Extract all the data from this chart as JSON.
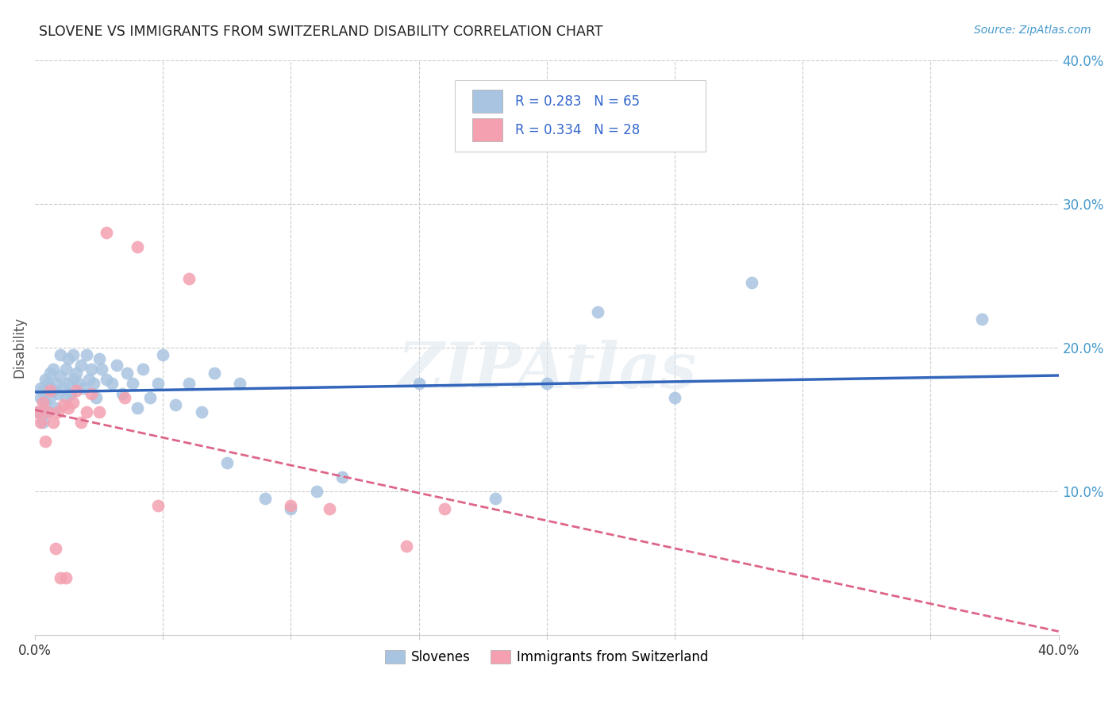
{
  "title": "SLOVENE VS IMMIGRANTS FROM SWITZERLAND DISABILITY CORRELATION CHART",
  "source": "Source: ZipAtlas.com",
  "ylabel": "Disability",
  "xlim": [
    0.0,
    0.4
  ],
  "ylim": [
    0.0,
    0.4
  ],
  "background_color": "#ffffff",
  "grid_color": "#cccccc",
  "watermark": "ZIPAtlas",
  "slovene_color": "#a8c4e0",
  "swiss_color": "#f4a0b0",
  "slovene_line_color": "#3366bb",
  "swiss_line_color": "#dd6688",
  "R_slovene": 0.283,
  "N_slovene": 65,
  "R_swiss": 0.334,
  "N_swiss": 28,
  "slovene_x": [
    0.001,
    0.002,
    0.002,
    0.003,
    0.003,
    0.004,
    0.004,
    0.005,
    0.005,
    0.006,
    0.006,
    0.007,
    0.007,
    0.008,
    0.008,
    0.009,
    0.01,
    0.01,
    0.011,
    0.012,
    0.012,
    0.013,
    0.013,
    0.014,
    0.015,
    0.015,
    0.016,
    0.017,
    0.018,
    0.019,
    0.02,
    0.021,
    0.022,
    0.023,
    0.024,
    0.025,
    0.026,
    0.028,
    0.03,
    0.032,
    0.034,
    0.036,
    0.038,
    0.04,
    0.042,
    0.045,
    0.048,
    0.05,
    0.055,
    0.06,
    0.065,
    0.07,
    0.075,
    0.08,
    0.09,
    0.1,
    0.11,
    0.12,
    0.15,
    0.18,
    0.2,
    0.22,
    0.25,
    0.28,
    0.37
  ],
  "slovene_y": [
    0.155,
    0.165,
    0.172,
    0.148,
    0.17,
    0.162,
    0.178,
    0.155,
    0.175,
    0.165,
    0.182,
    0.17,
    0.185,
    0.158,
    0.175,
    0.168,
    0.18,
    0.195,
    0.172,
    0.165,
    0.185,
    0.175,
    0.192,
    0.168,
    0.178,
    0.195,
    0.182,
    0.175,
    0.188,
    0.172,
    0.195,
    0.178,
    0.185,
    0.175,
    0.165,
    0.192,
    0.185,
    0.178,
    0.175,
    0.188,
    0.168,
    0.182,
    0.175,
    0.158,
    0.185,
    0.165,
    0.175,
    0.195,
    0.16,
    0.175,
    0.155,
    0.182,
    0.12,
    0.175,
    0.095,
    0.088,
    0.1,
    0.11,
    0.175,
    0.095,
    0.175,
    0.225,
    0.165,
    0.245,
    0.22
  ],
  "swiss_x": [
    0.001,
    0.002,
    0.003,
    0.004,
    0.005,
    0.006,
    0.007,
    0.008,
    0.009,
    0.01,
    0.011,
    0.012,
    0.013,
    0.015,
    0.016,
    0.018,
    0.02,
    0.022,
    0.025,
    0.028,
    0.035,
    0.04,
    0.048,
    0.06,
    0.1,
    0.115,
    0.145,
    0.16
  ],
  "swiss_y": [
    0.155,
    0.148,
    0.162,
    0.135,
    0.155,
    0.17,
    0.148,
    0.06,
    0.155,
    0.04,
    0.16,
    0.04,
    0.158,
    0.162,
    0.17,
    0.148,
    0.155,
    0.168,
    0.155,
    0.28,
    0.165,
    0.27,
    0.09,
    0.248,
    0.09,
    0.088,
    0.062,
    0.088
  ]
}
